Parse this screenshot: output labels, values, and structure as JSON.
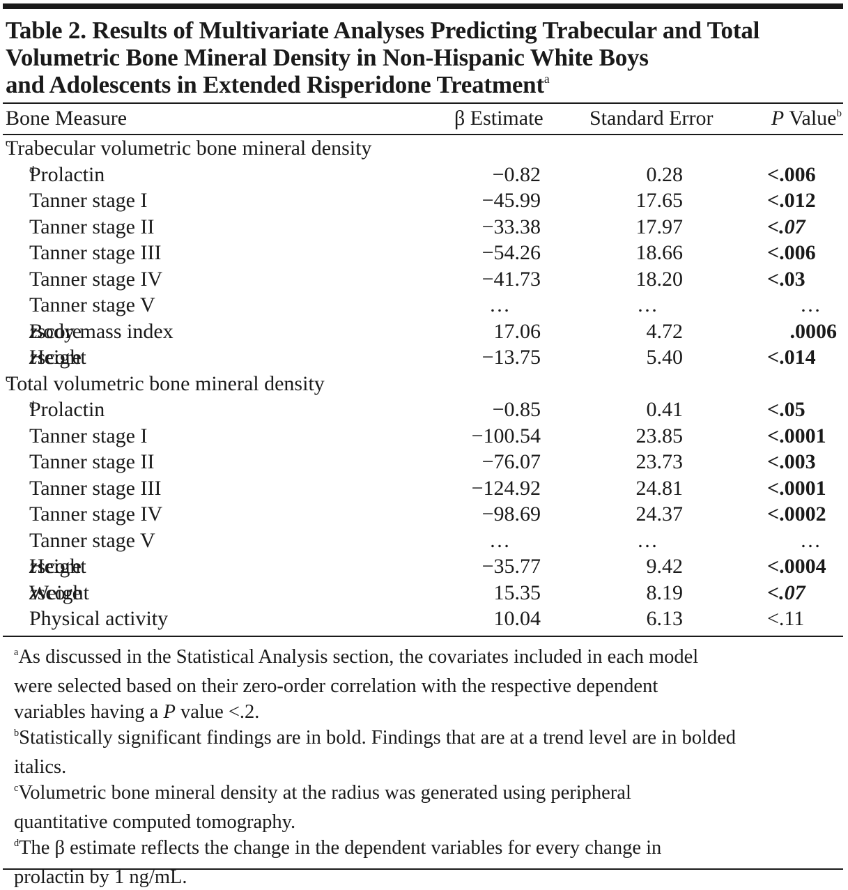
{
  "title": {
    "lines": [
      "Table 2. Results of Multivariate Analyses Predicting Trabecular and Total",
      "Volumetric Bone Mineral Density in Non-Hispanic White Boys",
      "and Adolescents in Extended Risperidone Treatment"
    ],
    "footnote_mark": "a"
  },
  "columns": {
    "measure": "Bone Measure",
    "beta": "β Estimate",
    "se": "Standard Error",
    "p_italic": "P",
    "p_rest": " Value",
    "p_mark": "b"
  },
  "sections": [
    {
      "label": "Trabecular volumetric bone mineral density",
      "mark": "c",
      "rows": [
        {
          "pre": "Prolactin",
          "mark": "d",
          "beta": "−0.82",
          "se": "0.28",
          "p": "<.006",
          "style": "bold"
        },
        {
          "pre": "Tanner stage I",
          "beta": "−45.99",
          "se": "17.65",
          "p": "<.012",
          "style": "bold"
        },
        {
          "pre": "Tanner stage II",
          "beta": "−33.38",
          "se": "17.97",
          "p": "<.07",
          "style": "bolditalic"
        },
        {
          "pre": "Tanner stage III",
          "beta": "−54.26",
          "se": "18.66",
          "p": "<.006",
          "style": "bold"
        },
        {
          "pre": "Tanner stage IV",
          "beta": "−41.73",
          "se": "18.20",
          "p": "<.03",
          "style": "bold"
        },
        {
          "pre": "Tanner stage V",
          "beta": "…",
          "se": "…",
          "p": "…",
          "style": "ellipsis"
        },
        {
          "pre": "Body mass index ",
          "ital": "z",
          "post": " score",
          "beta": "17.06",
          "se": "4.72",
          "p": ".0006",
          "style": "bold-right"
        },
        {
          "pre": "Height ",
          "ital": "z",
          "post": " score",
          "beta": "−13.75",
          "se": "5.40",
          "p": "<.014",
          "style": "bold"
        }
      ]
    },
    {
      "label": "Total volumetric bone mineral density",
      "mark": "c",
      "rows": [
        {
          "pre": "Prolactin",
          "mark": "d",
          "beta": "−0.85",
          "se": "0.41",
          "p": "<.05",
          "style": "bold"
        },
        {
          "pre": "Tanner stage I",
          "beta": "−100.54",
          "se": "23.85",
          "p": "<.0001",
          "style": "bold"
        },
        {
          "pre": "Tanner stage II",
          "beta": "−76.07",
          "se": "23.73",
          "p": "<.003",
          "style": "bold"
        },
        {
          "pre": "Tanner stage III",
          "beta": "−124.92",
          "se": "24.81",
          "p": "<.0001",
          "style": "bold"
        },
        {
          "pre": "Tanner stage IV",
          "beta": "−98.69",
          "se": "24.37",
          "p": "<.0002",
          "style": "bold"
        },
        {
          "pre": "Tanner stage V",
          "beta": "…",
          "se": "…",
          "p": "…",
          "style": "ellipsis"
        },
        {
          "pre": "Height ",
          "ital": "z",
          "post": " score",
          "beta": "−35.77",
          "se": "9.42",
          "p": "<.0004",
          "style": "bold"
        },
        {
          "pre": "Weight ",
          "ital": "z",
          "post": " score",
          "beta": "15.35",
          "se": "8.19",
          "p": "<.07",
          "style": "bolditalic"
        },
        {
          "pre": "Physical activity",
          "beta": "10.04",
          "se": "6.13",
          "p": "<.11",
          "style": "normal"
        }
      ]
    }
  ],
  "footnotes": [
    {
      "mark": "a",
      "lines": [
        "As discussed in the Statistical Analysis section, the covariates included in each model",
        "were selected based on their zero-order correlation with the respective dependent",
        {
          "pre": "variables having a ",
          "ital": "P",
          "post": " value <.2."
        }
      ]
    },
    {
      "mark": "b",
      "lines": [
        "Statistically significant findings are in bold. Findings that are at a trend level are in bolded",
        "italics."
      ]
    },
    {
      "mark": "c",
      "lines": [
        "Volumetric bone mineral density at the radius was generated using peripheral",
        "quantitative computed tomography."
      ]
    },
    {
      "mark": "d",
      "lines": [
        "The β estimate reflects the change in the dependent variables for every change in",
        "prolactin by 1 ng/mL."
      ]
    }
  ]
}
